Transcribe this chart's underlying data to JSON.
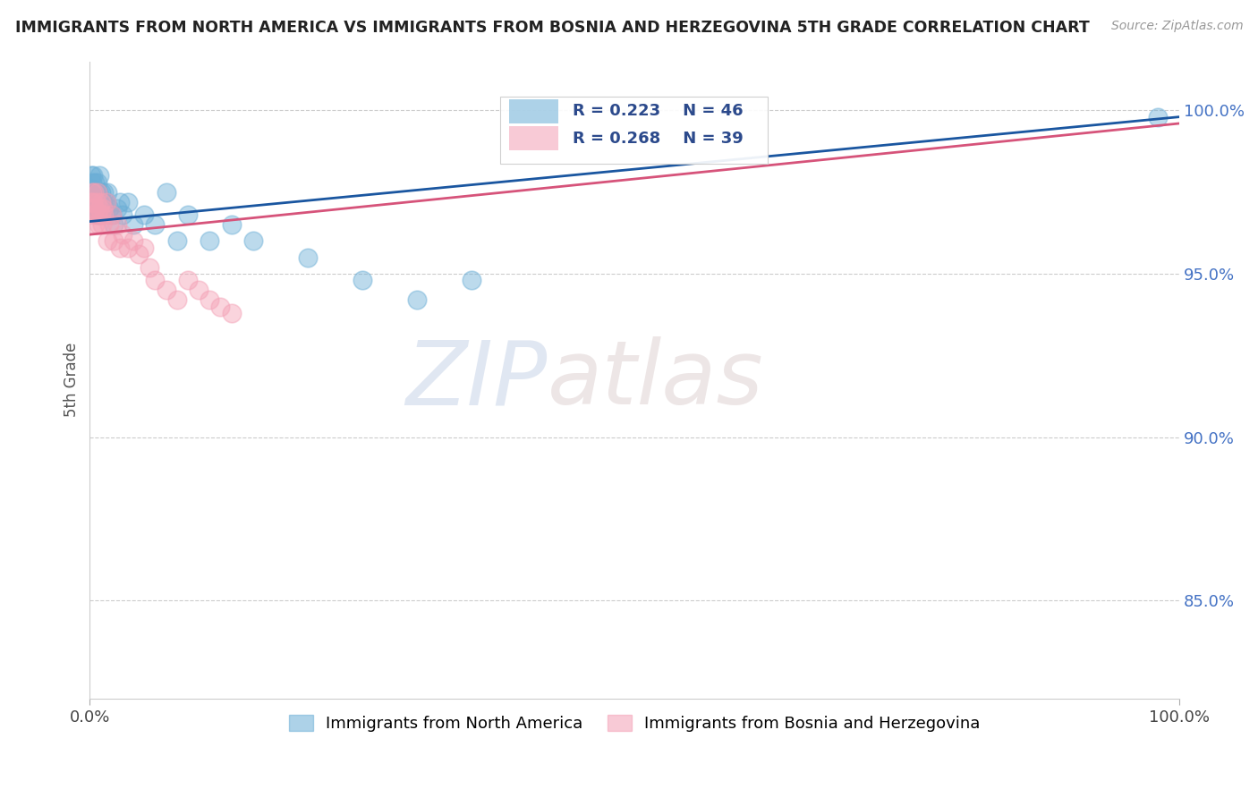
{
  "title": "IMMIGRANTS FROM NORTH AMERICA VS IMMIGRANTS FROM BOSNIA AND HERZEGOVINA 5TH GRADE CORRELATION CHART",
  "source": "Source: ZipAtlas.com",
  "ylabel": "5th Grade",
  "yticks": [
    "100.0%",
    "95.0%",
    "90.0%",
    "85.0%"
  ],
  "ytick_vals": [
    1.0,
    0.95,
    0.9,
    0.85
  ],
  "legend_blue_label": "Immigrants from North America",
  "legend_pink_label": "Immigrants from Bosnia and Herzegovina",
  "r_blue": 0.223,
  "n_blue": 46,
  "r_pink": 0.268,
  "n_pink": 39,
  "blue_color": "#6baed6",
  "pink_color": "#f4a0b5",
  "trendline_blue": "#1a56a0",
  "trendline_pink": "#d6537a",
  "text_color": "#2c4a8c",
  "blue_scatter_x": [
    0.001,
    0.002,
    0.002,
    0.003,
    0.003,
    0.004,
    0.004,
    0.005,
    0.005,
    0.006,
    0.006,
    0.007,
    0.007,
    0.008,
    0.008,
    0.009,
    0.009,
    0.01,
    0.01,
    0.011,
    0.012,
    0.013,
    0.014,
    0.015,
    0.016,
    0.018,
    0.02,
    0.022,
    0.025,
    0.028,
    0.03,
    0.035,
    0.04,
    0.05,
    0.06,
    0.07,
    0.08,
    0.09,
    0.11,
    0.13,
    0.15,
    0.2,
    0.25,
    0.3,
    0.35,
    0.98
  ],
  "blue_scatter_y": [
    0.98,
    0.978,
    0.976,
    0.98,
    0.975,
    0.975,
    0.972,
    0.978,
    0.97,
    0.975,
    0.972,
    0.978,
    0.97,
    0.975,
    0.968,
    0.972,
    0.98,
    0.968,
    0.975,
    0.97,
    0.972,
    0.975,
    0.97,
    0.972,
    0.975,
    0.97,
    0.968,
    0.965,
    0.97,
    0.972,
    0.968,
    0.972,
    0.965,
    0.968,
    0.965,
    0.975,
    0.96,
    0.968,
    0.96,
    0.965,
    0.96,
    0.955,
    0.948,
    0.942,
    0.948,
    0.998
  ],
  "pink_scatter_x": [
    0.001,
    0.002,
    0.002,
    0.003,
    0.003,
    0.004,
    0.005,
    0.005,
    0.006,
    0.007,
    0.007,
    0.008,
    0.009,
    0.01,
    0.01,
    0.011,
    0.012,
    0.013,
    0.015,
    0.016,
    0.018,
    0.02,
    0.022,
    0.025,
    0.028,
    0.03,
    0.035,
    0.04,
    0.045,
    0.05,
    0.055,
    0.06,
    0.07,
    0.08,
    0.09,
    0.1,
    0.11,
    0.12,
    0.13
  ],
  "pink_scatter_y": [
    0.972,
    0.975,
    0.97,
    0.972,
    0.968,
    0.975,
    0.965,
    0.97,
    0.972,
    0.968,
    0.975,
    0.965,
    0.97,
    0.968,
    0.972,
    0.965,
    0.97,
    0.968,
    0.972,
    0.96,
    0.965,
    0.968,
    0.96,
    0.965,
    0.958,
    0.962,
    0.958,
    0.96,
    0.956,
    0.958,
    0.952,
    0.948,
    0.945,
    0.942,
    0.948,
    0.945,
    0.942,
    0.94,
    0.938
  ],
  "background_color": "#ffffff",
  "grid_color": "#cccccc",
  "watermark_zip": "ZIP",
  "watermark_atlas": "atlas",
  "xmin": 0.0,
  "xmax": 1.0,
  "ymin": 0.82,
  "ymax": 1.015,
  "trendline_blue_start_y": 0.966,
  "trendline_blue_end_y": 0.998,
  "trendline_pink_start_y": 0.962,
  "trendline_pink_end_y": 0.996
}
